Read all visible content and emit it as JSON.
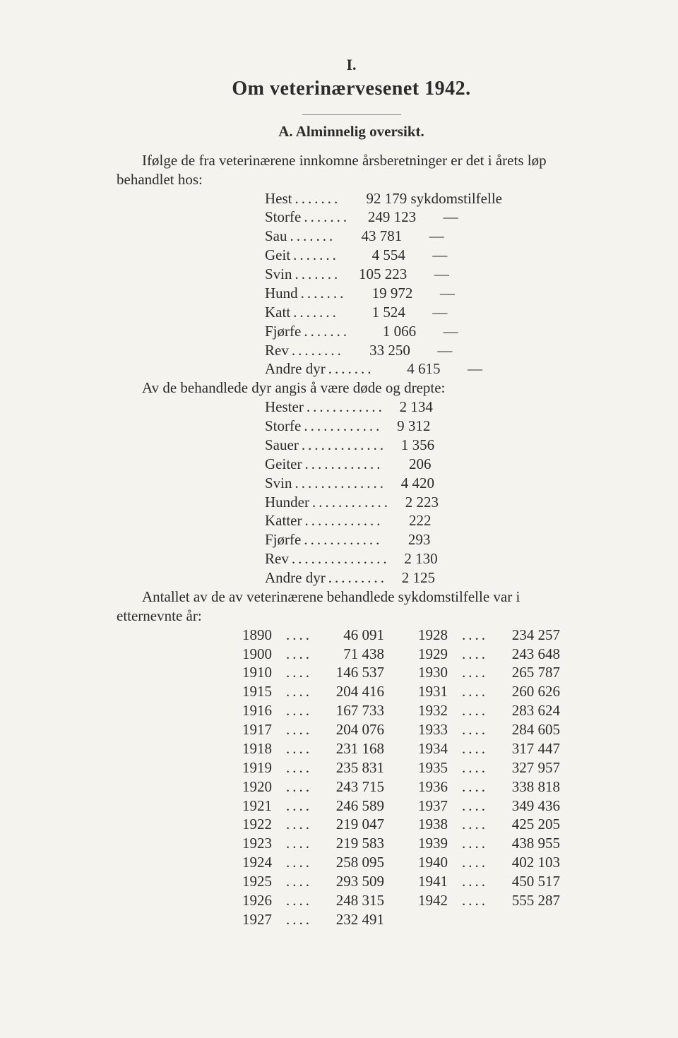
{
  "roman": "I.",
  "title": "Om veterinærvesenet 1942.",
  "subtitle": "A. Alminnelig oversikt.",
  "intro": "Ifølge de fra veterinærene innkomne årsberetninger er det i årets løp behandlet hos:",
  "treated": [
    {
      "name": "Hest",
      "value": "92 179",
      "suffix": "sykdomstilfelle"
    },
    {
      "name": "Storfe",
      "value": "249 123",
      "dash": "—"
    },
    {
      "name": "Sau",
      "value": "43 781",
      "dash": "—"
    },
    {
      "name": "Geit",
      "value": "4 554",
      "dash": "—"
    },
    {
      "name": "Svin",
      "value": "105 223",
      "dash": "—"
    },
    {
      "name": "Hund",
      "value": "19 972",
      "dash": "—"
    },
    {
      "name": "Katt",
      "value": "1 524",
      "dash": "—"
    },
    {
      "name": "Fjørfe",
      "value": "1 066",
      "dash": "—"
    },
    {
      "name": "Rev",
      "value": "33 250",
      "dash": "—"
    },
    {
      "name": "Andre dyr",
      "value": "4 615",
      "dash": "—"
    }
  ],
  "deaths_intro": "Av de behandlede dyr angis å være døde og drepte:",
  "deaths": [
    {
      "name": "Hester",
      "value": "2 134"
    },
    {
      "name": "Storfe",
      "value": "9 312"
    },
    {
      "name": "Sauer",
      "value": "1 356"
    },
    {
      "name": "Geiter",
      "value": "206"
    },
    {
      "name": "Svin",
      "value": "4 420"
    },
    {
      "name": "Hunder",
      "value": "2 223"
    },
    {
      "name": "Katter",
      "value": "222"
    },
    {
      "name": "Fjørfe",
      "value": "293"
    },
    {
      "name": "Rev",
      "value": "2 130"
    },
    {
      "name": "Andre dyr",
      "value": "2 125"
    }
  ],
  "years_intro": "Antallet av de av veterinærene behandlede sykdomstilfelle var i etternevnte år:",
  "years_left": [
    {
      "y": "1890",
      "v": "46 091"
    },
    {
      "y": "1900",
      "v": "71 438"
    },
    {
      "y": "1910",
      "v": "146 537"
    },
    {
      "y": "1915",
      "v": "204 416"
    },
    {
      "y": "1916",
      "v": "167 733"
    },
    {
      "y": "1917",
      "v": "204 076"
    },
    {
      "y": "1918",
      "v": "231 168"
    },
    {
      "y": "1919",
      "v": "235 831"
    },
    {
      "y": "1920",
      "v": "243 715"
    },
    {
      "y": "1921",
      "v": "246 589"
    },
    {
      "y": "1922",
      "v": "219 047"
    },
    {
      "y": "1923",
      "v": "219 583"
    },
    {
      "y": "1924",
      "v": "258 095"
    },
    {
      "y": "1925",
      "v": "293 509"
    },
    {
      "y": "1926",
      "v": "248 315"
    },
    {
      "y": "1927",
      "v": "232 491"
    }
  ],
  "years_right": [
    {
      "y": "1928",
      "v": "234 257"
    },
    {
      "y": "1929",
      "v": "243 648"
    },
    {
      "y": "1930",
      "v": "265 787"
    },
    {
      "y": "1931",
      "v": "260 626"
    },
    {
      "y": "1932",
      "v": "283 624"
    },
    {
      "y": "1933",
      "v": "284 605"
    },
    {
      "y": "1934",
      "v": "317 447"
    },
    {
      "y": "1935",
      "v": "327 957"
    },
    {
      "y": "1936",
      "v": "338 818"
    },
    {
      "y": "1937",
      "v": "349 436"
    },
    {
      "y": "1938",
      "v": "425 205"
    },
    {
      "y": "1939",
      "v": "438 955"
    },
    {
      "y": "1940",
      "v": "402 103"
    },
    {
      "y": "1941",
      "v": "450 517"
    },
    {
      "y": "1942",
      "v": "555 287"
    }
  ],
  "treated_val_col": 414,
  "deaths_val_col": 446,
  "dot_char": "."
}
